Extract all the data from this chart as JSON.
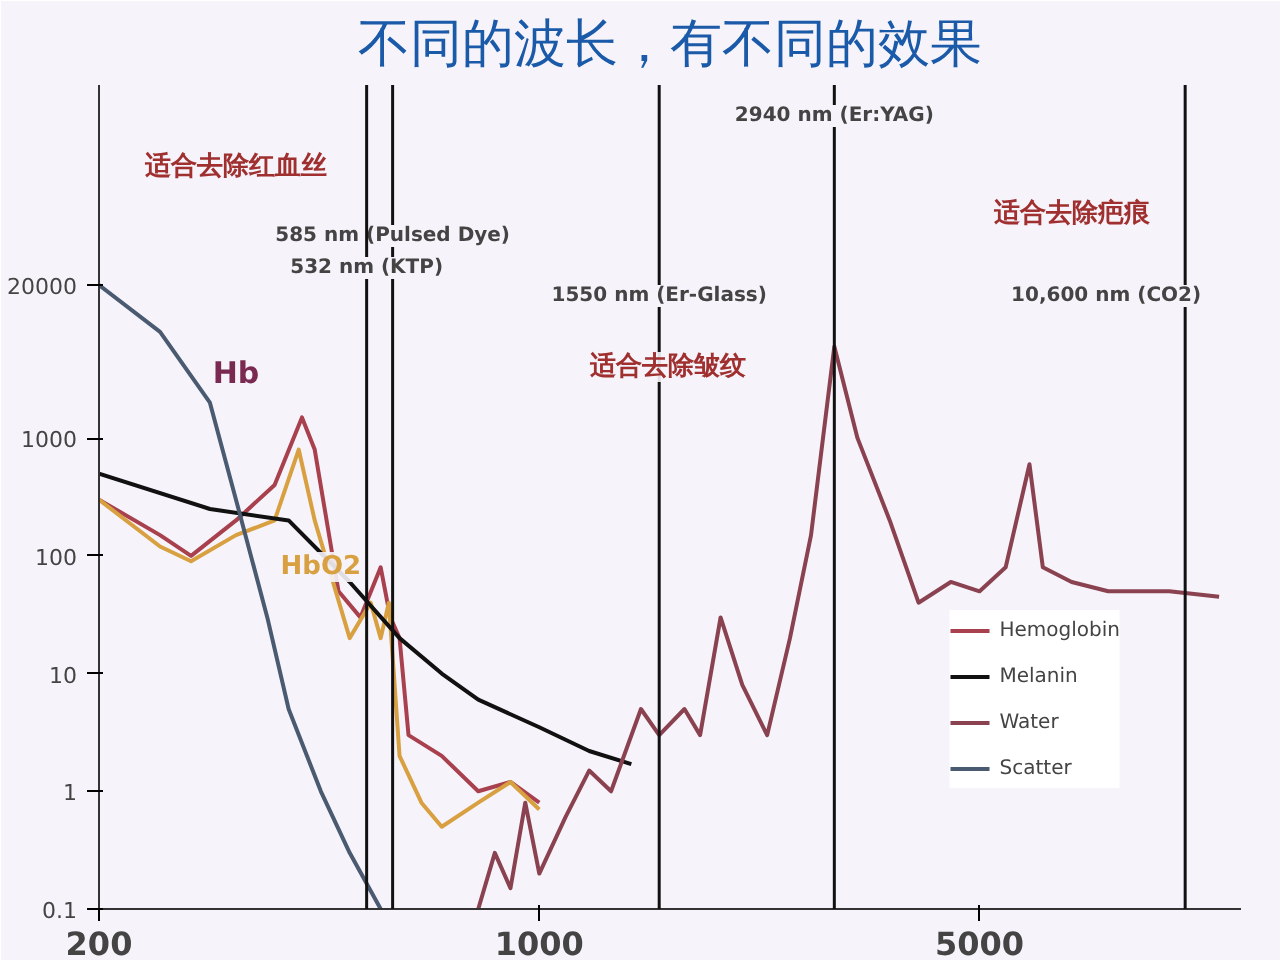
{
  "chart_data": {
    "type": "line",
    "title": "不同的波长，有不同的效果",
    "log": "xy",
    "xlim": [
      200,
      13000
    ],
    "ylim": [
      0.1,
      1000000
    ],
    "xticks": [
      200,
      1000,
      5000
    ],
    "yticks": [
      0.1,
      1,
      10,
      100,
      1000,
      20000
    ],
    "grid": false,
    "legend": "bottom right",
    "marker": "none",
    "line_style": "solid",
    "series": [
      {
        "name": "Hemoglobin",
        "color": "#a8404e",
        "x": [
          200,
          250,
          280,
          330,
          380,
          420,
          440,
          480,
          520,
          560,
          580,
          600,
          620,
          700,
          800,
          900,
          1000
        ],
        "values": [
          300,
          150,
          100,
          200,
          400,
          1500,
          800,
          50,
          30,
          80,
          30,
          20,
          3,
          2,
          1,
          1.2,
          0.8
        ]
      },
      {
        "color": "#d8a040",
        "x": [
          200,
          250,
          280,
          330,
          380,
          415,
          440,
          500,
          540,
          560,
          577,
          600,
          650,
          700,
          800,
          900,
          1000
        ],
        "values": [
          300,
          120,
          90,
          150,
          200,
          800,
          200,
          20,
          40,
          20,
          40,
          2,
          0.8,
          0.5,
          0.8,
          1.2,
          0.7
        ]
      },
      {
        "name": "Melanin",
        "color": "#111111",
        "x": [
          200,
          300,
          400,
          500,
          600,
          700,
          800,
          1000,
          1200,
          1400
        ],
        "values": [
          500,
          250,
          200,
          60,
          20,
          10,
          6,
          3.5,
          2.2,
          1.7
        ]
      },
      {
        "name": "Water",
        "color": "#8a4250",
        "x": [
          800,
          850,
          900,
          950,
          1000,
          1100,
          1200,
          1300,
          1450,
          1550,
          1700,
          1800,
          1940,
          2100,
          2300,
          2500,
          2700,
          2940,
          3200,
          3600,
          4000,
          4500,
          5000,
          5500,
          6000,
          6300,
          7000,
          8000,
          10000,
          12000
        ],
        "values": [
          0.1,
          0.3,
          0.15,
          0.8,
          0.2,
          0.6,
          1.5,
          1,
          5,
          3,
          5,
          3,
          30,
          8,
          3,
          20,
          150,
          6000,
          1000,
          200,
          40,
          60,
          50,
          80,
          600,
          80,
          60,
          50,
          50,
          45
        ]
      },
      {
        "name": "Scatter",
        "color": "#4a5a70",
        "x": [
          200,
          250,
          300,
          330,
          370,
          400,
          450,
          500,
          560
        ],
        "values": [
          20000,
          8000,
          2000,
          300,
          30,
          5,
          1,
          0.3,
          0.1
        ]
      }
    ],
    "ref_lines": [
      {
        "axis": "x",
        "value": 585,
        "label": "585 nm (Pulsed Dye)",
        "color": "#111111"
      },
      {
        "axis": "x",
        "value": 532,
        "label": "532 nm (KTP)",
        "color": "#111111"
      },
      {
        "axis": "x",
        "value": 1550,
        "label": "1550 nm (Er-Glass)",
        "color": "#111111"
      },
      {
        "axis": "x",
        "value": 2940,
        "label": "2940 nm (Er:YAG)",
        "color": "#111111"
      },
      {
        "axis": "x",
        "value": 10600,
        "label": "10,600 nm (CO2)",
        "color": "#111111"
      }
    ],
    "annotations": [
      "Hb",
      "HbO2",
      "适合去除红血丝",
      "适合去除皱纹",
      "适合去除疤痕"
    ]
  }
}
